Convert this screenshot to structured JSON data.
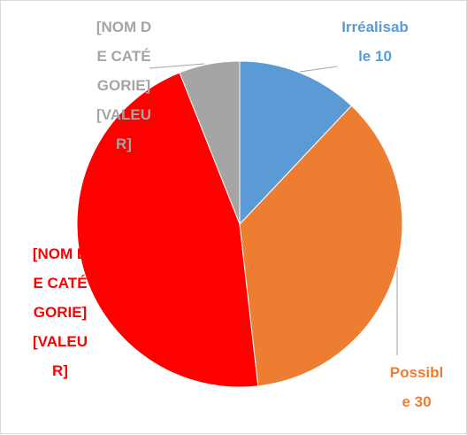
{
  "chart_data": {
    "type": "pie",
    "categories": [
      "Irréalisable",
      "Possible",
      "[NOM DE CATÉGORIE]",
      "[NOM DE CATÉGORIE]"
    ],
    "values": [
      10,
      30,
      38,
      5
    ],
    "value_labels": [
      "10",
      "30",
      "[VALEUR]",
      "[VALEUR]"
    ],
    "colors": [
      "#5b9bd5",
      "#ed7d31",
      "#ff0000",
      "#a5a5a5"
    ]
  }
}
